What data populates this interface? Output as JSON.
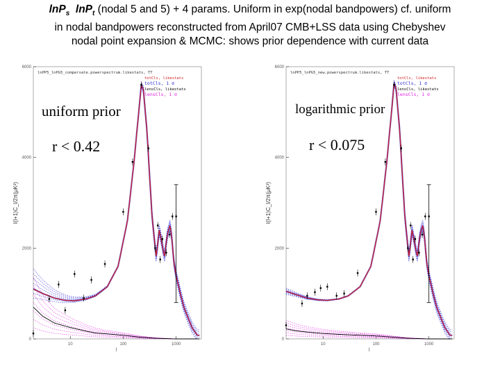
{
  "title": {
    "p1": "ln",
    "s1": "P",
    "sub1": "s",
    "p2": "ln",
    "s2": "P",
    "sub2": "t",
    "rest1": " (nodal 5 and 5) + 4 params. Uniform in exp(nodal bandpowers) cf. uniform",
    "line2": "in nodal bandpowers reconstructed from April07 CMB+LSS data using Chebyshev",
    "line3": "nodal point expansion & MCMC: shows prior dependence with current data"
  },
  "overlays": {
    "left_prior": "uniform prior",
    "left_r": "r  < 0.42",
    "right_prior": "logarithmic prior",
    "right_r": "r  < 0.075"
  },
  "colors": {
    "blue": "#2a2ad6",
    "red": "#d42020",
    "magenta": "#e020e0",
    "black": "#000000",
    "frame": "#999999"
  },
  "chart_data": [
    {
      "type": "line",
      "header": "lnPP5_lnPG5_compersate.powerspectrum.likestats, TT",
      "xlabel": "l",
      "ylabel": "l(l+1)C_l/2π(μK²)",
      "xscale": "log",
      "xlim": [
        2,
        3000
      ],
      "ylim": [
        0,
        6000
      ],
      "xticks": [
        "10",
        "100",
        "1000"
      ],
      "yticks": [
        "0",
        "2000",
        "4000",
        "6000"
      ],
      "legend": [
        "totCls, likestats",
        "totCls, 1 σ",
        "lensCls, likestats",
        "lensCls, 1 σ"
      ],
      "legend_position": "top-right",
      "tensor_spread_at_l2": [
        900,
        1550
      ],
      "series": [
        {
          "name": "totCls",
          "x": [
            2,
            3,
            5,
            8,
            12,
            20,
            30,
            50,
            80,
            120,
            160,
            200,
            220,
            240,
            280,
            350,
            420,
            480,
            540,
            600,
            680,
            760,
            820,
            900,
            1000,
            1200,
            1400,
            1700,
            2000,
            2500
          ],
          "y": [
            1100,
            1000,
            900,
            850,
            840,
            880,
            950,
            1150,
            1600,
            2600,
            3900,
            5100,
            5600,
            5500,
            4600,
            2700,
            1800,
            2400,
            2100,
            1800,
            2300,
            2500,
            2300,
            1700,
            1400,
            1000,
            700,
            450,
            250,
            80
          ]
        },
        {
          "name": "lensCls",
          "x": [
            2,
            3,
            5,
            10,
            20,
            30,
            50,
            80,
            120,
            200,
            400,
            1000
          ],
          "y": [
            700,
            500,
            350,
            250,
            170,
            130,
            110,
            90,
            70,
            40,
            15,
            0
          ]
        }
      ],
      "data_points": [
        {
          "x": 2,
          "y": 120
        },
        {
          "x": 4,
          "y": 880
        },
        {
          "x": 6,
          "y": 1200
        },
        {
          "x": 8,
          "y": 630
        },
        {
          "x": 12,
          "y": 1430
        },
        {
          "x": 18,
          "y": 900
        },
        {
          "x": 25,
          "y": 1300
        },
        {
          "x": 45,
          "y": 1650
        },
        {
          "x": 100,
          "y": 2800
        },
        {
          "x": 150,
          "y": 3900
        },
        {
          "x": 220,
          "y": 5600
        },
        {
          "x": 300,
          "y": 4200
        },
        {
          "x": 400,
          "y": 2000
        },
        {
          "x": 450,
          "y": 2500
        },
        {
          "x": 500,
          "y": 1750
        },
        {
          "x": 550,
          "y": 2200
        },
        {
          "x": 650,
          "y": 1900
        },
        {
          "x": 750,
          "y": 2300
        },
        {
          "x": 850,
          "y": 2700
        },
        {
          "x": 1000,
          "y": 2700
        }
      ]
    },
    {
      "type": "line",
      "header": "lnPP5_lnPG5_new.powerspectrum.likestats, TT",
      "xlabel": "l",
      "ylabel": "l(l+1)C_l/2π(μK²)",
      "xscale": "log",
      "xlim": [
        2,
        3000
      ],
      "ylim": [
        0,
        6000
      ],
      "xticks": [
        "10",
        "100",
        "1000"
      ],
      "yticks": [
        "0",
        "2000",
        "4000",
        "6000"
      ],
      "legend": [
        "totCls, likestats",
        "totCls, 1 σ",
        "lensCls, likestats",
        "lensCls, 1 σ"
      ],
      "legend_position": "top-right",
      "tensor_spread_at_l2": [
        980,
        1120
      ],
      "series": [
        {
          "name": "totCls",
          "x": [
            2,
            3,
            5,
            8,
            12,
            20,
            30,
            50,
            80,
            120,
            160,
            200,
            220,
            240,
            280,
            350,
            420,
            480,
            540,
            600,
            680,
            760,
            820,
            900,
            1000,
            1200,
            1400,
            1700,
            2000,
            2500
          ],
          "y": [
            1050,
            980,
            900,
            860,
            850,
            880,
            950,
            1150,
            1600,
            2600,
            3900,
            5100,
            5650,
            5500,
            4600,
            2700,
            1800,
            2400,
            2100,
            1800,
            2300,
            2500,
            2300,
            1700,
            1400,
            1000,
            700,
            450,
            250,
            80
          ]
        },
        {
          "name": "lensCls",
          "x": [
            2,
            3,
            5,
            10,
            20,
            30,
            50,
            80,
            120,
            200,
            400,
            1000
          ],
          "y": [
            220,
            180,
            150,
            120,
            100,
            90,
            80,
            70,
            60,
            40,
            15,
            0
          ]
        }
      ],
      "data_points": [
        {
          "x": 2,
          "y": 300
        },
        {
          "x": 4,
          "y": 780
        },
        {
          "x": 5,
          "y": 950
        },
        {
          "x": 7,
          "y": 1030
        },
        {
          "x": 9,
          "y": 1120
        },
        {
          "x": 12,
          "y": 1150
        },
        {
          "x": 18,
          "y": 950
        },
        {
          "x": 25,
          "y": 1000
        },
        {
          "x": 45,
          "y": 1450
        },
        {
          "x": 100,
          "y": 2800
        },
        {
          "x": 150,
          "y": 3900
        },
        {
          "x": 220,
          "y": 5600
        },
        {
          "x": 300,
          "y": 4200
        },
        {
          "x": 400,
          "y": 2000
        },
        {
          "x": 450,
          "y": 2500
        },
        {
          "x": 500,
          "y": 1750
        },
        {
          "x": 550,
          "y": 2200
        },
        {
          "x": 650,
          "y": 1900
        },
        {
          "x": 750,
          "y": 2300
        },
        {
          "x": 850,
          "y": 2700
        },
        {
          "x": 1000,
          "y": 2700
        }
      ]
    }
  ]
}
